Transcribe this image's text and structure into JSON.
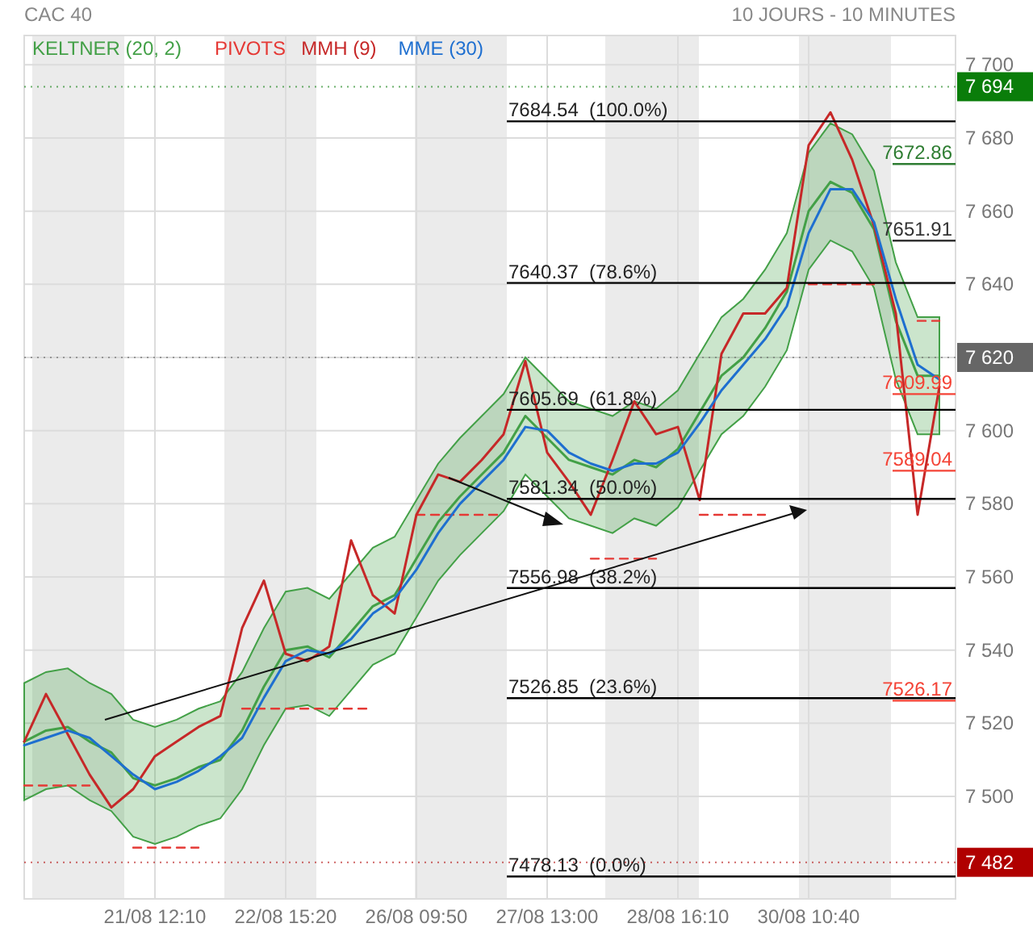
{
  "chart_data": {
    "type": "line",
    "title": "CAC 40",
    "subtitle": "10 JOURS - 10 MINUTES",
    "categories": [
      null,
      null,
      null,
      null,
      null,
      null,
      "21/08 12:10",
      null,
      null,
      null,
      null,
      null,
      "22/08 15:20",
      null,
      null,
      null,
      null,
      null,
      "26/08 09:50",
      null,
      null,
      null,
      null,
      null,
      "27/08 13:00",
      null,
      null,
      null,
      null,
      null,
      "28/08 16:10",
      null,
      null,
      null,
      null,
      null,
      "30/08 10:40",
      null,
      null,
      null,
      null,
      null,
      null
    ],
    "ylim": [
      7472,
      7708
    ],
    "yticks": [
      {
        "value": 7500,
        "label": "7 500"
      },
      {
        "value": 7520,
        "label": "7 520"
      },
      {
        "value": 7540,
        "label": "7 540"
      },
      {
        "value": 7560,
        "label": "7 560"
      },
      {
        "value": 7580,
        "label": "7 580"
      },
      {
        "value": 7600,
        "label": "7 600"
      },
      {
        "value": 7620,
        "label": null
      },
      {
        "value": 7640,
        "label": "7 640"
      },
      {
        "value": 7660,
        "label": "7 660"
      },
      {
        "value": 7680,
        "label": "7 680"
      },
      {
        "value": 7700,
        "label": "7 700"
      }
    ],
    "grid": true,
    "legend": "top left",
    "series": [
      {
        "name": "KELTNER (20, 2)",
        "color": "#43a047",
        "values": [
          7515,
          7518,
          7519,
          7515,
          7512,
          7505,
          7503,
          7505,
          7508,
          7510,
          7518,
          7530,
          7540,
          7541,
          7538,
          7545,
          7552,
          7555,
          7565,
          7575,
          7582,
          7588,
          7594,
          7604,
          7598,
          7592,
          7590,
          7588,
          7592,
          7590,
          7595,
          7605,
          7615,
          7620,
          7628,
          7638,
          7660,
          7668,
          7665,
          7655,
          7630,
          7615,
          7615
        ],
        "upper": [
          7531,
          7534,
          7535,
          7531,
          7528,
          7521,
          7519,
          7521,
          7524,
          7526,
          7534,
          7546,
          7556,
          7557,
          7554,
          7561,
          7568,
          7571,
          7581,
          7591,
          7598,
          7604,
          7610,
          7620,
          7614,
          7608,
          7606,
          7604,
          7608,
          7606,
          7611,
          7621,
          7631,
          7636,
          7644,
          7654,
          7676,
          7684,
          7681,
          7671,
          7646,
          7631,
          7631
        ],
        "lower": [
          7499,
          7502,
          7503,
          7499,
          7496,
          7489,
          7487,
          7489,
          7492,
          7494,
          7502,
          7514,
          7524,
          7525,
          7522,
          7529,
          7536,
          7539,
          7549,
          7559,
          7566,
          7572,
          7578,
          7588,
          7582,
          7576,
          7574,
          7572,
          7576,
          7574,
          7579,
          7589,
          7599,
          7604,
          7612,
          7622,
          7644,
          7652,
          7649,
          7639,
          7614,
          7599,
          7599
        ]
      },
      {
        "name": "PIVOTS",
        "line_style": "dashed",
        "color": "#e53935",
        "values": [
          7503,
          7503,
          7503,
          7503,
          null,
          7486,
          7486,
          7486,
          7486,
          null,
          7524,
          7524,
          7524,
          7524,
          7524,
          7524,
          7524,
          null,
          7577,
          7577,
          7577,
          7577,
          7577,
          null,
          null,
          null,
          7565,
          7565,
          7565,
          7565,
          null,
          7577,
          7577,
          7577,
          7577,
          null,
          7640,
          7640,
          7640,
          7640,
          null,
          7630,
          7630
        ]
      },
      {
        "name": "MMH (9)",
        "color": "#c62828",
        "values": [
          7515,
          7528,
          7517,
          7506,
          7497,
          7502,
          7511,
          7515,
          7519,
          7522,
          7546,
          7559,
          7539,
          7537,
          7541,
          7570,
          7555,
          7550,
          7577,
          7588,
          7586,
          7592,
          7599,
          7619,
          7594,
          7586,
          7577,
          7592,
          7608,
          7599,
          7601,
          7581,
          7621,
          7632,
          7632,
          7639,
          7678,
          7687,
          7674,
          7656,
          7632,
          7577,
          7612
        ]
      },
      {
        "name": "MME (30)",
        "color": "#1e6fd0",
        "values": [
          7514,
          7516,
          7518,
          7516,
          7511,
          7506,
          7502,
          7504,
          7507,
          7511,
          7516,
          7527,
          7537,
          7540,
          7539,
          7543,
          7550,
          7554,
          7562,
          7572,
          7580,
          7586,
          7592,
          7601,
          7600,
          7594,
          7591,
          7589,
          7591,
          7591,
          7594,
          7602,
          7611,
          7618,
          7625,
          7634,
          7654,
          7666,
          7666,
          7657,
          7636,
          7618,
          7614
        ]
      }
    ],
    "ref_lines": [
      {
        "axis": "y",
        "value": 7684.54,
        "label": "7684.54  (100.0%)"
      },
      {
        "axis": "y",
        "value": 7640.37,
        "label": "7640.37  (78.6%)"
      },
      {
        "axis": "y",
        "value": 7605.69,
        "label": "7605.69  (61.8%)"
      },
      {
        "axis": "y",
        "value": 7581.34,
        "label": "7581.34  (50.0%)"
      },
      {
        "axis": "y",
        "value": 7556.98,
        "label": "7556.98  (38.2%)"
      },
      {
        "axis": "y",
        "value": 7526.85,
        "label": "7526.85  (23.6%)"
      },
      {
        "axis": "y",
        "value": 7478.13,
        "label": "7478.13  (0.0%)"
      },
      {
        "axis": "y",
        "value": 7672.86,
        "label": "7672.86",
        "color": "#2e7d32"
      },
      {
        "axis": "y",
        "value": 7651.91,
        "label": "7651.91",
        "color": "#333333"
      },
      {
        "axis": "y",
        "value": 7609.99,
        "label": "7609.99",
        "color": "#f44336"
      },
      {
        "axis": "y",
        "value": 7589.04,
        "label": "7589.04",
        "color": "#f44336"
      },
      {
        "axis": "y",
        "value": 7526.17,
        "label": "7526.17",
        "color": "#f44336"
      },
      {
        "axis": "y",
        "value": 7694,
        "label": "7 694",
        "color": "#0a7d0a",
        "line_style": "dotted"
      },
      {
        "axis": "y",
        "value": 7620,
        "label": "7 620",
        "color": "#666666",
        "line_style": "dotted"
      },
      {
        "axis": "y",
        "value": 7482,
        "label": "7 482",
        "color": "#b00000",
        "line_style": "dotted"
      }
    ]
  }
}
